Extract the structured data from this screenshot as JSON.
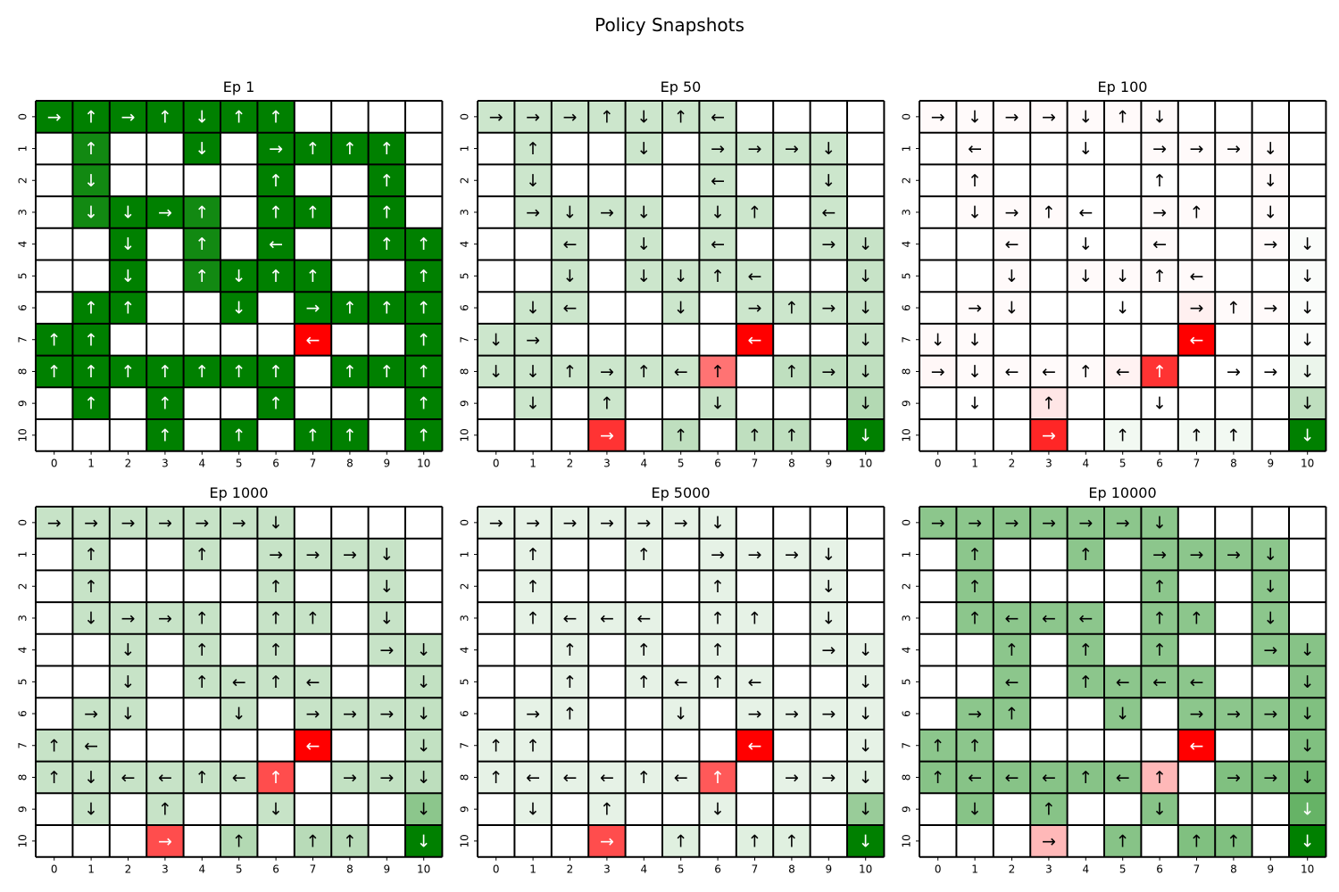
{
  "figure": {
    "title": "Policy Snapshots"
  },
  "colors": {
    "empty": "#ffffff",
    "green_max": "#008000",
    "red_max": "#ff0000",
    "grid_line": "#000000"
  },
  "chart_data": [
    {
      "type": "heatmap",
      "title": "Ep 1",
      "x_ticks": [
        "0",
        "1",
        "2",
        "3",
        "4",
        "5",
        "6",
        "7",
        "8",
        "9",
        "10"
      ],
      "y_ticks": [
        "0",
        "1",
        "2",
        "3",
        "4",
        "5",
        "6",
        "7",
        "8",
        "9",
        "10"
      ],
      "arrows": [
        "→↑→↑↓↑↑....",
        ".↑..↓.→↑↑↑.",
        ".↓....↑..↑.",
        ".↓↓→↑.↑↑.↑.",
        "..↓.↑.←..↑↑",
        "..↓.↑↓↑↑..↑",
        ".↑↑..↓.→↑↑↑",
        "↑↑.....←..↑",
        "↑↑↑↑↑↑↑.↑↑↑",
        ".↑.↑..↑...↑",
        "...↑.↑.↑↑.↑"
      ],
      "values": [
        [
          1,
          1,
          1,
          1,
          1,
          1,
          1,
          0,
          0,
          0,
          0
        ],
        [
          0,
          0.93,
          0,
          0,
          1,
          0,
          1,
          1,
          1,
          1,
          0
        ],
        [
          0,
          0.93,
          0,
          0,
          0,
          0,
          1,
          0,
          0,
          1,
          0
        ],
        [
          0,
          0.93,
          1,
          1,
          0.93,
          0,
          1,
          1,
          0,
          1,
          0
        ],
        [
          0,
          0,
          1,
          0,
          0.93,
          0,
          1,
          0,
          0,
          1,
          1
        ],
        [
          0,
          0,
          1,
          0,
          0.93,
          1,
          1,
          1,
          0,
          0,
          1
        ],
        [
          0,
          1,
          1,
          0,
          0,
          1,
          0,
          1,
          1,
          1,
          1
        ],
        [
          1,
          1,
          0,
          0,
          0,
          0,
          0,
          -1,
          0,
          0,
          1
        ],
        [
          1,
          1,
          1,
          1,
          1,
          1,
          1,
          0,
          1,
          1,
          1
        ],
        [
          0,
          1,
          0,
          1,
          0,
          0,
          1,
          0,
          0,
          0,
          1
        ],
        [
          0,
          0,
          0,
          1,
          0,
          1,
          0,
          1,
          1,
          0,
          1
        ]
      ]
    },
    {
      "type": "heatmap",
      "title": "Ep 50",
      "x_ticks": [
        "0",
        "1",
        "2",
        "3",
        "4",
        "5",
        "6",
        "7",
        "8",
        "9",
        "10"
      ],
      "y_ticks": [
        "0",
        "1",
        "2",
        "3",
        "4",
        "5",
        "6",
        "7",
        "8",
        "9",
        "10"
      ],
      "arrows": [
        "→→→↑↓↑←....",
        ".↑..↓.→→→↓.",
        ".↓....←..↓.",
        ".→↓→↓.↓↑.←.",
        "..←.↓.←..→↓",
        "..↓.↓↓↑←..↓",
        ".↓←..↓.→↑→↓",
        "↓→.....←..↓",
        "↓↓↑→↑←↑.↑→↓",
        ".↓.↑..↓...↓",
        "...→.↑.↑↑.↓"
      ],
      "values": [
        [
          0.2,
          0.2,
          0.2,
          0.2,
          0.2,
          0.2,
          0.2,
          0,
          0,
          0,
          0
        ],
        [
          0,
          0.2,
          0,
          0,
          0.2,
          0,
          0.2,
          0.2,
          0.2,
          0.2,
          0
        ],
        [
          0,
          0.2,
          0,
          0,
          0,
          0,
          0.2,
          0,
          0,
          0.2,
          0
        ],
        [
          0,
          0.2,
          0.2,
          0.2,
          0.2,
          0,
          0.2,
          0.2,
          0,
          0.2,
          0
        ],
        [
          0,
          0,
          0.2,
          0,
          0.2,
          0,
          0.2,
          0,
          0,
          0.2,
          0.22
        ],
        [
          0,
          0,
          0.2,
          0,
          0.2,
          0.2,
          0.2,
          0.2,
          0,
          0,
          0.22
        ],
        [
          0,
          0.2,
          0.2,
          0,
          0,
          0.2,
          0,
          0.2,
          0.2,
          0.2,
          0.22
        ],
        [
          0.2,
          0.2,
          0,
          0,
          0,
          0,
          0,
          -1,
          0,
          0,
          0.22
        ],
        [
          0.2,
          0.2,
          0.2,
          0.2,
          0.2,
          0.2,
          -0.55,
          0,
          0.25,
          0.25,
          0.25
        ],
        [
          0,
          0.2,
          0,
          0.2,
          0,
          0,
          0.22,
          0,
          0,
          0,
          0.3
        ],
        [
          0,
          0,
          0,
          -0.8,
          0,
          0.25,
          0,
          0.25,
          0.25,
          0,
          1
        ]
      ]
    },
    {
      "type": "heatmap",
      "title": "Ep 100",
      "x_ticks": [
        "0",
        "1",
        "2",
        "3",
        "4",
        "5",
        "6",
        "7",
        "8",
        "9",
        "10"
      ],
      "y_ticks": [
        "0",
        "1",
        "2",
        "3",
        "4",
        "5",
        "6",
        "7",
        "8",
        "9",
        "10"
      ],
      "arrows": [
        "→↓→→↓↑↓....",
        ".←..↓.→→→↓.",
        ".↑....↑..↓.",
        ".↓→↑←.→↑.↓.",
        "..←.↓.←..→↓",
        "..↓.↓↓↑←..↓",
        ".→↓..↓.→↑→↓",
        "↓↓.....←..↓",
        "→↓←←↑←↑.→→↓",
        ".↓.↑..↓...↓",
        "...→.↑.↑↑.↓"
      ],
      "values": [
        [
          -0.02,
          -0.02,
          -0.02,
          -0.02,
          -0.02,
          -0.02,
          -0.02,
          0,
          0,
          0,
          0
        ],
        [
          0,
          -0.02,
          0,
          0,
          0,
          0,
          -0.02,
          -0.02,
          -0.02,
          -0.02,
          0
        ],
        [
          0,
          -0.02,
          0,
          0,
          0,
          0,
          0,
          0,
          0,
          -0.02,
          0
        ],
        [
          0,
          -0.02,
          -0.02,
          -0.02,
          0,
          0,
          -0.02,
          -0.02,
          0,
          -0.02,
          0
        ],
        [
          0,
          0,
          -0.02,
          0,
          0,
          0,
          -0.02,
          0,
          0,
          -0.02,
          0.02
        ],
        [
          0,
          0,
          -0.02,
          0,
          -0.02,
          -0.02,
          -0.02,
          -0.02,
          0,
          0,
          0.02
        ],
        [
          0,
          -0.02,
          -0.02,
          0,
          0,
          0,
          0,
          -0.06,
          -0.02,
          -0.02,
          0.02
        ],
        [
          -0.02,
          -0.02,
          0,
          0,
          0,
          0,
          0,
          -1,
          0,
          0,
          0.02
        ],
        [
          -0.03,
          -0.02,
          -0.02,
          -0.02,
          -0.02,
          -0.05,
          -0.8,
          0,
          0,
          0,
          0.08
        ],
        [
          0,
          0,
          0,
          -0.1,
          0,
          0,
          0,
          0,
          0,
          0,
          0.25
        ],
        [
          0,
          0,
          0,
          -0.85,
          0,
          0.05,
          0,
          0.05,
          0.05,
          0,
          1
        ]
      ]
    },
    {
      "type": "heatmap",
      "title": "Ep 1000",
      "x_ticks": [
        "0",
        "1",
        "2",
        "3",
        "4",
        "5",
        "6",
        "7",
        "8",
        "9",
        "10"
      ],
      "y_ticks": [
        "0",
        "1",
        "2",
        "3",
        "4",
        "5",
        "6",
        "7",
        "8",
        "9",
        "10"
      ],
      "arrows": [
        "→→→→→→↓....",
        ".↑..↑.→→→↓.",
        ".↑....↑..↓.",
        ".↓→→↑.↑↑.↓.",
        "..↓.↑.↑..→↓",
        "..↓.↑←↑←..↓",
        ".→↓..↓.→→→↓",
        "↑←.....←..↓",
        "↑↓←←↑←↑.→→↓",
        ".↓.↑..↓...↓",
        "...→.↑.↑↑.↓"
      ],
      "values": [
        [
          0.22,
          0.22,
          0.22,
          0.22,
          0.22,
          0.22,
          0.22,
          0,
          0,
          0,
          0
        ],
        [
          0,
          0.22,
          0,
          0,
          0.22,
          0,
          0.22,
          0.22,
          0.22,
          0.22,
          0
        ],
        [
          0,
          0.22,
          0,
          0,
          0,
          0,
          0.22,
          0,
          0,
          0.22,
          0
        ],
        [
          0,
          0.22,
          0.22,
          0.22,
          0.22,
          0,
          0.22,
          0.22,
          0,
          0.22,
          0
        ],
        [
          0,
          0,
          0.22,
          0,
          0.22,
          0,
          0.22,
          0,
          0,
          0.22,
          0.24
        ],
        [
          0,
          0,
          0.22,
          0,
          0.22,
          0.22,
          0.22,
          0.22,
          0,
          0,
          0.24
        ],
        [
          0,
          0.22,
          0.22,
          0,
          0,
          0.22,
          0,
          0.22,
          0.22,
          0.22,
          0.24
        ],
        [
          0.22,
          0.22,
          0,
          0,
          0,
          0,
          0,
          -1,
          0,
          0,
          0.24
        ],
        [
          0.22,
          0.22,
          0.22,
          0.22,
          0.22,
          0.22,
          -0.7,
          0,
          0.24,
          0.24,
          0.26
        ],
        [
          0,
          0.22,
          0,
          0.22,
          0,
          0,
          0.22,
          0,
          0,
          0,
          0.45
        ],
        [
          0,
          0,
          0,
          -0.7,
          0,
          0.3,
          0,
          0.28,
          0.28,
          0,
          1
        ]
      ]
    },
    {
      "type": "heatmap",
      "title": "Ep 5000",
      "x_ticks": [
        "0",
        "1",
        "2",
        "3",
        "4",
        "5",
        "6",
        "7",
        "8",
        "9",
        "10"
      ],
      "y_ticks": [
        "0",
        "1",
        "2",
        "3",
        "4",
        "5",
        "6",
        "7",
        "8",
        "9",
        "10"
      ],
      "arrows": [
        "→→→→→→↓....",
        ".↑..↑.→→→↓.",
        ".↑....↑..↓.",
        ".↑←←←.↑↑.↓.",
        "..↑.↑.↑..→↓",
        "..↑.↑←↑←..↓",
        ".→↑..↓.→→→↓",
        "↑↑.....←..↓",
        "↑←←←↑←↑.→→↓",
        ".↓.↑..↓...↓",
        "...→.↑.↑↑.↓"
      ],
      "values": [
        [
          0.1,
          0.1,
          0.1,
          0.1,
          0.1,
          0.1,
          0.1,
          0,
          0,
          0,
          0
        ],
        [
          0,
          0.1,
          0,
          0,
          0.1,
          0,
          0.1,
          0.1,
          0.1,
          0.1,
          0
        ],
        [
          0,
          0.1,
          0,
          0,
          0,
          0,
          0.1,
          0,
          0,
          0.1,
          0
        ],
        [
          0,
          0.1,
          0.1,
          0.1,
          0.1,
          0,
          0.1,
          0.1,
          0,
          0.1,
          0
        ],
        [
          0,
          0,
          0.1,
          0,
          0.1,
          0,
          0.1,
          0,
          0,
          0.1,
          0.1
        ],
        [
          0,
          0,
          0.1,
          0,
          0.1,
          0.1,
          0.1,
          0.1,
          0,
          0,
          0.1
        ],
        [
          0,
          0.1,
          0.1,
          0,
          0,
          0.1,
          0,
          0.1,
          0.1,
          0.1,
          0.1
        ],
        [
          0.1,
          0.1,
          0,
          0,
          0,
          0,
          0,
          -1,
          0,
          0,
          0.1
        ],
        [
          0.1,
          0.1,
          0.1,
          0.1,
          0.1,
          0.1,
          -0.65,
          0,
          0.1,
          0.1,
          0.12
        ],
        [
          0,
          0.1,
          0,
          0.1,
          0,
          0,
          0.1,
          0,
          0,
          0,
          0.4
        ],
        [
          0,
          0,
          0,
          -0.7,
          0,
          0.12,
          0,
          0.12,
          0.12,
          0,
          1
        ]
      ]
    },
    {
      "type": "heatmap",
      "title": "Ep 10000",
      "x_ticks": [
        "0",
        "1",
        "2",
        "3",
        "4",
        "5",
        "6",
        "7",
        "8",
        "9",
        "10"
      ],
      "y_ticks": [
        "0",
        "1",
        "2",
        "3",
        "4",
        "5",
        "6",
        "7",
        "8",
        "9",
        "10"
      ],
      "arrows": [
        "→→→→→→↓....",
        ".↑..↑.→→→↓.",
        ".↑....↑..↓.",
        ".↑←←←.↑↑.↓.",
        "..↑.↑.↑..→↓",
        "..←.↑←←←..↓",
        ".→↑..↓.→→→↓",
        "↑↑.....←..↓",
        "↑←←←↑←↑.→→↓",
        ".↓.↑..↓...↓",
        "...→.↑.↑↑.↓"
      ],
      "values": [
        [
          0.45,
          0.45,
          0.45,
          0.45,
          0.45,
          0.45,
          0.45,
          0,
          0,
          0,
          0
        ],
        [
          0,
          0.45,
          0,
          0,
          0.45,
          0,
          0.45,
          0.45,
          0.45,
          0.45,
          0
        ],
        [
          0,
          0.45,
          0,
          0,
          0,
          0,
          0.45,
          0,
          0,
          0.45,
          0
        ],
        [
          0,
          0.45,
          0.45,
          0.45,
          0.45,
          0,
          0.45,
          0.45,
          0,
          0.45,
          0
        ],
        [
          0,
          0,
          0.45,
          0,
          0.45,
          0,
          0.45,
          0,
          0,
          0.45,
          0.47
        ],
        [
          0,
          0,
          0.45,
          0,
          0.45,
          0.45,
          0.45,
          0.45,
          0,
          0,
          0.47
        ],
        [
          0,
          0.45,
          0.45,
          0,
          0,
          0.45,
          0,
          0.45,
          0.45,
          0.45,
          0.5
        ],
        [
          0.45,
          0.45,
          0,
          0,
          0,
          0,
          0,
          -1,
          0,
          0,
          0.5
        ],
        [
          0.47,
          0.47,
          0.47,
          0.47,
          0.47,
          0.47,
          -0.28,
          0,
          0.5,
          0.5,
          0.55
        ],
        [
          0,
          0.47,
          0,
          0.47,
          0,
          0,
          0.47,
          0,
          0,
          0,
          0.6
        ],
        [
          0,
          0,
          0,
          -0.28,
          0,
          0.47,
          0,
          0.5,
          0.5,
          0,
          1
        ]
      ]
    }
  ]
}
